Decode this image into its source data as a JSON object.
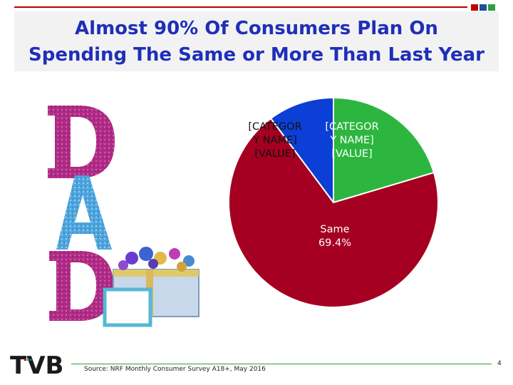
{
  "slide": {
    "title_line1": "Almost 90% Of Consumers Plan On",
    "title_line2": "Spending The Same or More Than Last Year",
    "source": "Source: NRF Monthly Consumer Survey A18+, May 2016",
    "page_number": "4",
    "logo_text": "TVB"
  },
  "colors": {
    "title": "#1f2fb8",
    "accent_red": "#c00000",
    "accent_blue": "#1f4e9c",
    "accent_green": "#2e9e3e"
  },
  "icons": [
    "dad-decorative-letters-icon",
    "gift-box-icon",
    "tvb-logo-icon"
  ],
  "chart_data": {
    "type": "pie",
    "title": "",
    "slices": [
      {
        "label_lines": [
          "Same",
          "69.4%"
        ],
        "value": 69.4,
        "color": "#a50021"
      },
      {
        "label_lines": [
          "[CATEGOR",
          "Y NAME]",
          "[VALUE]"
        ],
        "value": 10.2,
        "color": "#0b3fd6"
      },
      {
        "label_lines": [
          "[CATEGOR",
          "Y NAME]",
          "[VALUE]"
        ],
        "value": 20.4,
        "color": "#2cb63f"
      }
    ],
    "legend": "none"
  }
}
